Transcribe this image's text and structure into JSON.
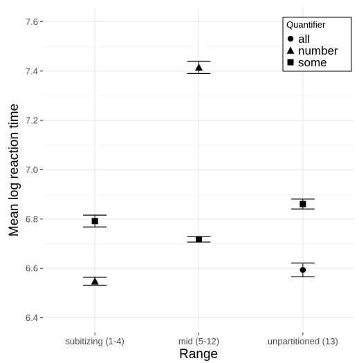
{
  "chart_data": {
    "type": "scatter",
    "xlabel": "Range",
    "ylabel": "Mean log reaction time",
    "categories": [
      "subitizing (1-4)",
      "mid (5-12)",
      "unpartitioned (13)"
    ],
    "ylim": [
      6.34,
      7.66
    ],
    "yticks": [
      6.4,
      6.6,
      6.8,
      7.0,
      7.2,
      7.4,
      7.6
    ],
    "ytick_labels": [
      "6.4",
      "6.6",
      "6.8",
      "7.0",
      "7.2",
      "7.4",
      "7.6"
    ],
    "grid": true,
    "legend": {
      "title": "Quantifier",
      "placement": "top-right"
    },
    "series": [
      {
        "name": "all",
        "marker": "circle",
        "points": [
          {
            "x": "unpartitioned (13)",
            "y": 6.594,
            "lo": 6.566,
            "hi": 6.622
          }
        ]
      },
      {
        "name": "number",
        "marker": "triangle",
        "points": [
          {
            "x": "subitizing (1-4)",
            "y": 6.548,
            "lo": 6.532,
            "hi": 6.564
          },
          {
            "x": "mid (5-12)",
            "y": 7.415,
            "lo": 7.39,
            "hi": 7.44
          }
        ]
      },
      {
        "name": "some",
        "marker": "square",
        "points": [
          {
            "x": "subitizing (1-4)",
            "y": 6.792,
            "lo": 6.768,
            "hi": 6.816
          },
          {
            "x": "mid (5-12)",
            "y": 6.718,
            "lo": 6.707,
            "hi": 6.729
          },
          {
            "x": "unpartitioned (13)",
            "y": 6.861,
            "lo": 6.841,
            "hi": 6.881
          }
        ]
      }
    ]
  }
}
